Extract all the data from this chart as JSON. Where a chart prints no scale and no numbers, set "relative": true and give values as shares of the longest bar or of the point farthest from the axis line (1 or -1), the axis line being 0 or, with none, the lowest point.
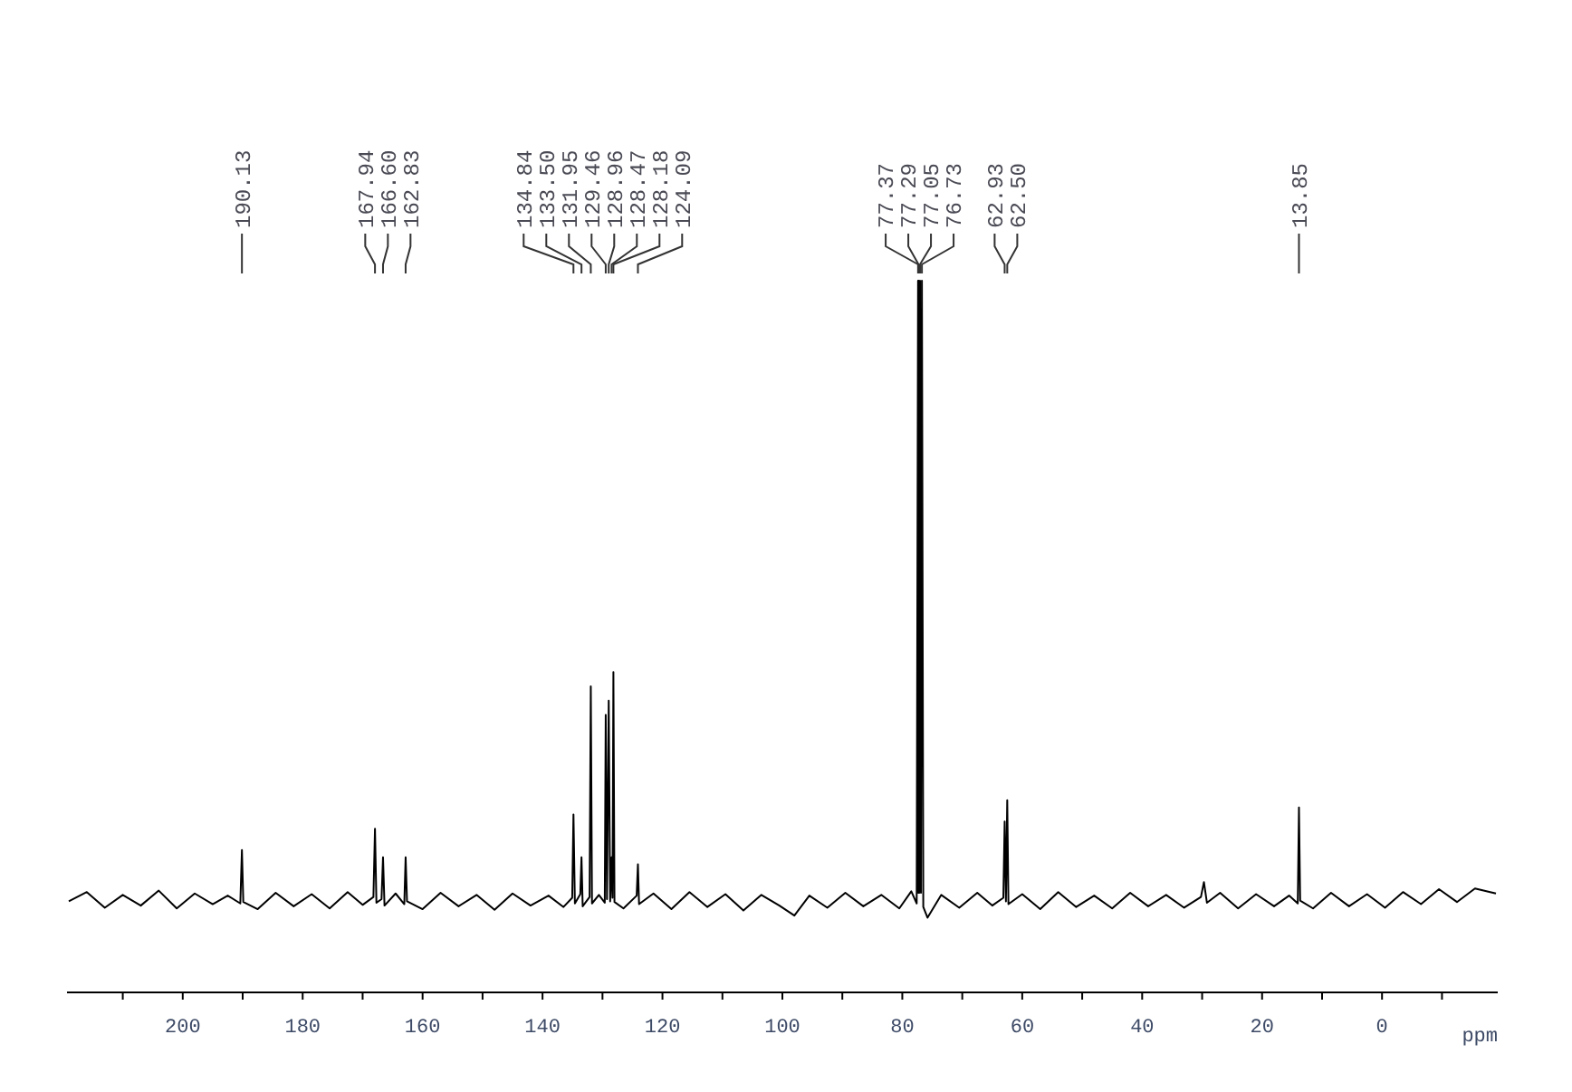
{
  "chart_data": {
    "type": "line",
    "relative": true,
    "xlabel": "ppm",
    "xlim": [
      219.3,
      -19.3
    ],
    "xticks": [
      {
        "value": 210,
        "label": null
      },
      200,
      {
        "value": 190,
        "label": null
      },
      180,
      {
        "value": 170,
        "label": null
      },
      160,
      {
        "value": 150,
        "label": null
      },
      140,
      {
        "value": 130,
        "label": null
      },
      120,
      {
        "value": 110,
        "label": null
      },
      100,
      {
        "value": 90,
        "label": null
      },
      80,
      {
        "value": 70,
        "label": null
      },
      60,
      {
        "value": 50,
        "label": null
      },
      40,
      {
        "value": 30,
        "label": null
      },
      20,
      {
        "value": 10,
        "label": null
      },
      0,
      {
        "value": -10,
        "label": null
      }
    ],
    "x": [
      219,
      216,
      213,
      210,
      207,
      204,
      201,
      198,
      195,
      192.5,
      190.4,
      190.13,
      189.9,
      187.5,
      184.5,
      181.5,
      178.5,
      175.5,
      172.5,
      170,
      168.2,
      167.94,
      167.7,
      166.85,
      166.6,
      166.35,
      164.5,
      163.05,
      162.83,
      162.6,
      160,
      157,
      154,
      151,
      148,
      145,
      142,
      139,
      136.5,
      135.05,
      134.84,
      134.6,
      133.7,
      133.5,
      133.3,
      132.15,
      131.95,
      131.75,
      130.6,
      129.62,
      129.46,
      129.25,
      128.96,
      128.72,
      128.47,
      128.33,
      128.18,
      128.0,
      126.5,
      124.3,
      124.09,
      123.9,
      121.5,
      118.5,
      115.5,
      112.5,
      109.5,
      106.5,
      103.5,
      100.5,
      98,
      95.5,
      92.5,
      89.5,
      86.5,
      83.5,
      80.5,
      78.5,
      77.6,
      77.37,
      77.33,
      77.29,
      77.17,
      77.05,
      76.89,
      76.73,
      76.5,
      75.8,
      73.5,
      70.5,
      67.5,
      65,
      63.15,
      62.93,
      62.72,
      62.5,
      62.3,
      60,
      57,
      54,
      51,
      48,
      45,
      42,
      39,
      36,
      33,
      30.2,
      29.7,
      29.2,
      27,
      24,
      21,
      18,
      15.5,
      14.05,
      13.85,
      13.65,
      11.5,
      8.5,
      5.5,
      2.5,
      -0.5,
      -3.5,
      -6.5,
      -9.5,
      -12.5,
      -15.5,
      -19
    ],
    "series": [
      {
        "color": "#000000",
        "values": [
          0.128,
          0.141,
          0.119,
          0.137,
          0.122,
          0.143,
          0.118,
          0.139,
          0.124,
          0.136,
          0.125,
          0.2,
          0.127,
          0.117,
          0.14,
          0.121,
          0.138,
          0.118,
          0.141,
          0.123,
          0.134,
          0.23,
          0.126,
          0.131,
          0.19,
          0.122,
          0.139,
          0.124,
          0.19,
          0.128,
          0.117,
          0.14,
          0.121,
          0.137,
          0.116,
          0.139,
          0.122,
          0.136,
          0.12,
          0.133,
          0.25,
          0.125,
          0.138,
          0.19,
          0.121,
          0.134,
          0.43,
          0.125,
          0.137,
          0.126,
          0.39,
          0.131,
          0.41,
          0.128,
          0.19,
          0.133,
          0.45,
          0.127,
          0.118,
          0.136,
          0.18,
          0.124,
          0.139,
          0.117,
          0.141,
          0.12,
          0.138,
          0.115,
          0.137,
          0.122,
          0.108,
          0.136,
          0.119,
          0.14,
          0.121,
          0.137,
          0.118,
          0.142,
          0.125,
          1.0,
          0.14,
          1.0,
          0.14,
          1.0,
          0.14,
          1.0,
          0.12,
          0.105,
          0.137,
          0.119,
          0.14,
          0.122,
          0.133,
          0.24,
          0.128,
          0.27,
          0.124,
          0.138,
          0.117,
          0.141,
          0.12,
          0.136,
          0.118,
          0.14,
          0.121,
          0.137,
          0.119,
          0.134,
          0.155,
          0.126,
          0.14,
          0.118,
          0.138,
          0.121,
          0.136,
          0.125,
          0.26,
          0.129,
          0.118,
          0.14,
          0.121,
          0.138,
          0.119,
          0.141,
          0.124,
          0.145,
          0.127,
          0.146,
          0.139
        ]
      }
    ],
    "annotations": [
      {
        "text": "190.13",
        "x": 190.13
      },
      {
        "text": "167.94",
        "x": 167.94
      },
      {
        "text": "166.60",
        "x": 166.6
      },
      {
        "text": "162.83",
        "x": 162.83
      },
      {
        "text": "134.84",
        "x": 134.84
      },
      {
        "text": "133.50",
        "x": 133.5
      },
      {
        "text": "131.95",
        "x": 131.95
      },
      {
        "text": "129.46",
        "x": 129.46
      },
      {
        "text": "128.96",
        "x": 128.96
      },
      {
        "text": "128.47",
        "x": 128.47
      },
      {
        "text": "128.18",
        "x": 128.18
      },
      {
        "text": "124.09",
        "x": 124.09
      },
      {
        "text": "77.37",
        "x": 77.37
      },
      {
        "text": "77.29",
        "x": 77.29
      },
      {
        "text": "77.05",
        "x": 77.05
      },
      {
        "text": "76.73",
        "x": 76.73
      },
      {
        "text": "62.93",
        "x": 62.93
      },
      {
        "text": "62.50",
        "x": 62.5
      },
      {
        "text": "13.85",
        "x": 13.85
      }
    ]
  }
}
